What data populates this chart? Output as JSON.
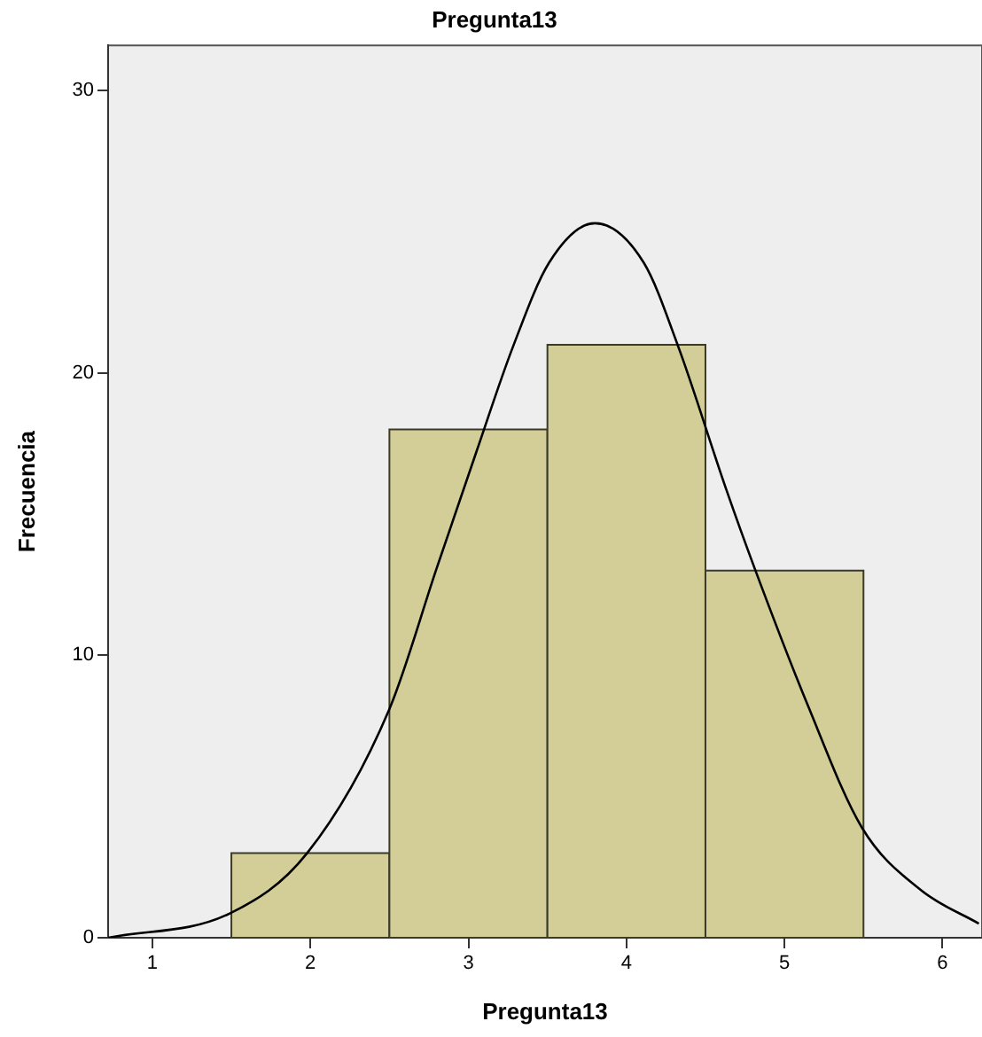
{
  "chart_data": {
    "type": "histogram",
    "title": "Pregunta13",
    "xlabel": "Pregunta13",
    "ylabel": "Frecuencia",
    "bins": [
      1.5,
      2.5,
      3.5,
      4.5,
      5.5
    ],
    "values": [
      3,
      18,
      21,
      13
    ],
    "color": "#d3cd97",
    "series": [
      {
        "type": "line",
        "color": "#000000",
        "x": [
          0.72,
          1.49,
          1.98,
          2.5,
          2.8,
          3.05,
          3.28,
          3.51,
          3.8,
          4.11,
          4.33,
          4.63,
          4.81,
          5.15,
          5.49,
          5.86,
          6.23
        ],
        "values": [
          0,
          0.86,
          3,
          8.1,
          13.1,
          17.2,
          20.9,
          23.9,
          25.3,
          23.9,
          20.9,
          15.9,
          13.1,
          8.2,
          3.9,
          1.7,
          0.5
        ]
      }
    ],
    "xlim": [
      0.72,
      6.25
    ],
    "ylim": [
      0,
      31.6
    ],
    "xticks": [
      1,
      2,
      3,
      4,
      5,
      6
    ],
    "yticks": [
      0,
      10,
      20,
      30
    ],
    "grid": false,
    "legend": false,
    "marker": "none",
    "line_style": "solid"
  }
}
